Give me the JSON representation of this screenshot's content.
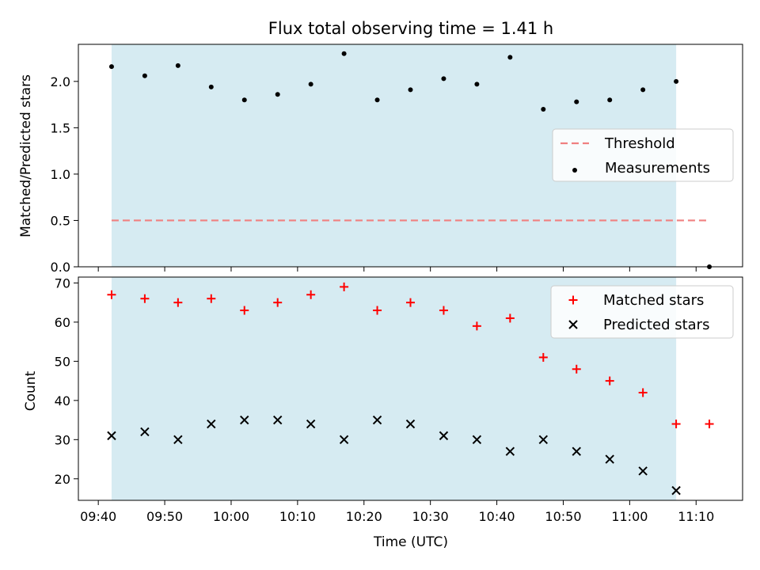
{
  "chart_data": [
    {
      "type": "scatter",
      "title": "Flux total observing time = 1.41 h",
      "xlabel": "",
      "ylabel": "Matched/Predicted stars",
      "xlim": [
        "09:37",
        "11:17"
      ],
      "ylim": [
        0,
        2.4
      ],
      "y_ticks": [
        "0.0",
        "0.5",
        "1.0",
        "1.5",
        "2.0"
      ],
      "shaded_region": {
        "start": "09:42",
        "end": "11:07",
        "color": "#add8e6"
      },
      "threshold": {
        "name": "Threshold",
        "value": 0.5,
        "x_start": "09:42",
        "x_end": "11:12",
        "color": "#f08080"
      },
      "series": [
        {
          "name": "Measurements",
          "color": "#000000",
          "x": [
            "09:42",
            "09:47",
            "09:52",
            "09:57",
            "10:02",
            "10:07",
            "10:12",
            "10:17",
            "10:22",
            "10:27",
            "10:32",
            "10:37",
            "10:42",
            "10:47",
            "10:52",
            "10:57",
            "11:02",
            "11:07",
            "11:12"
          ],
          "values": [
            2.16,
            2.06,
            2.17,
            1.94,
            1.8,
            1.86,
            1.97,
            2.3,
            1.8,
            1.91,
            2.03,
            1.97,
            2.26,
            1.7,
            1.78,
            1.8,
            1.91,
            2.0,
            0.0
          ]
        }
      ],
      "legend": {
        "position": "center-right",
        "entries": [
          "Threshold",
          "Measurements"
        ]
      }
    },
    {
      "type": "scatter",
      "title": "",
      "xlabel": "Time (UTC)",
      "ylabel": "Count",
      "xlim": [
        "09:37",
        "11:17"
      ],
      "ylim": [
        14.5,
        71.5
      ],
      "y_ticks": [
        "20",
        "30",
        "40",
        "50",
        "60",
        "70"
      ],
      "x_ticks": [
        "09:40",
        "09:50",
        "10:00",
        "10:10",
        "10:20",
        "10:30",
        "10:40",
        "10:50",
        "11:00",
        "11:10"
      ],
      "shaded_region": {
        "start": "09:42",
        "end": "11:07",
        "color": "#add8e6"
      },
      "series": [
        {
          "name": "Matched stars",
          "marker": "+",
          "color": "#ff0000",
          "x": [
            "09:42",
            "09:47",
            "09:52",
            "09:57",
            "10:02",
            "10:07",
            "10:12",
            "10:17",
            "10:22",
            "10:27",
            "10:32",
            "10:37",
            "10:42",
            "10:47",
            "10:52",
            "10:57",
            "11:02",
            "11:07",
            "11:12"
          ],
          "values": [
            67,
            66,
            65,
            66,
            63,
            65,
            67,
            69,
            63,
            65,
            63,
            59,
            61,
            51,
            48,
            45,
            42,
            34,
            34
          ]
        },
        {
          "name": "Predicted stars",
          "marker": "x",
          "color": "#000000",
          "x": [
            "09:42",
            "09:47",
            "09:52",
            "09:57",
            "10:02",
            "10:07",
            "10:12",
            "10:17",
            "10:22",
            "10:27",
            "10:32",
            "10:37",
            "10:42",
            "10:47",
            "10:52",
            "10:57",
            "11:02",
            "11:07"
          ],
          "values": [
            31,
            32,
            30,
            34,
            35,
            35,
            34,
            30,
            35,
            34,
            31,
            30,
            27,
            30,
            27,
            25,
            22,
            17
          ]
        }
      ],
      "legend": {
        "position": "top-right",
        "entries": [
          "Matched stars",
          "Predicted stars"
        ]
      }
    }
  ]
}
